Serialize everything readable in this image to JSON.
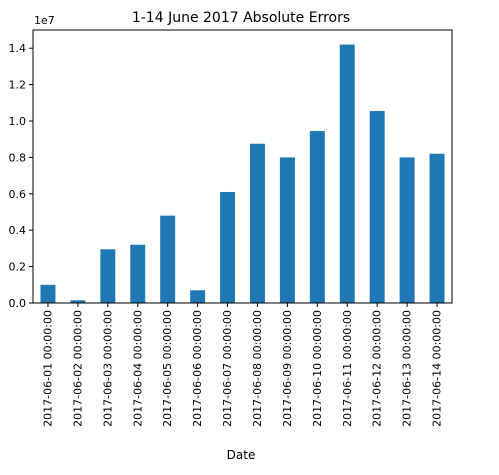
{
  "chart_data": {
    "type": "bar",
    "title": "1-14 June 2017 Absolute Errors",
    "xlabel": "Date",
    "ylabel": "",
    "y_offset_label": "1e7",
    "scale": 10000000,
    "categories": [
      "2017-06-01 00:00:00",
      "2017-06-02 00:00:00",
      "2017-06-03 00:00:00",
      "2017-06-04 00:00:00",
      "2017-06-05 00:00:00",
      "2017-06-06 00:00:00",
      "2017-06-07 00:00:00",
      "2017-06-08 00:00:00",
      "2017-06-09 00:00:00",
      "2017-06-10 00:00:00",
      "2017-06-11 00:00:00",
      "2017-06-12 00:00:00",
      "2017-06-13 00:00:00",
      "2017-06-14 00:00:00"
    ],
    "values": [
      1000000,
      150000,
      2950000,
      3200000,
      4800000,
      700000,
      6100000,
      8750000,
      8000000,
      9450000,
      14200000,
      10550000,
      8000000,
      8200000
    ],
    "ylim": [
      0,
      15000000
    ],
    "yticks": [
      0,
      2000000,
      4000000,
      6000000,
      8000000,
      10000000,
      12000000,
      14000000
    ],
    "ytick_labels": [
      "0.0",
      "0.2",
      "0.4",
      "0.6",
      "0.8",
      "1.0",
      "1.2",
      "1.4"
    ],
    "bar_color": "#1f77b4",
    "grid": false,
    "legend": "none"
  }
}
